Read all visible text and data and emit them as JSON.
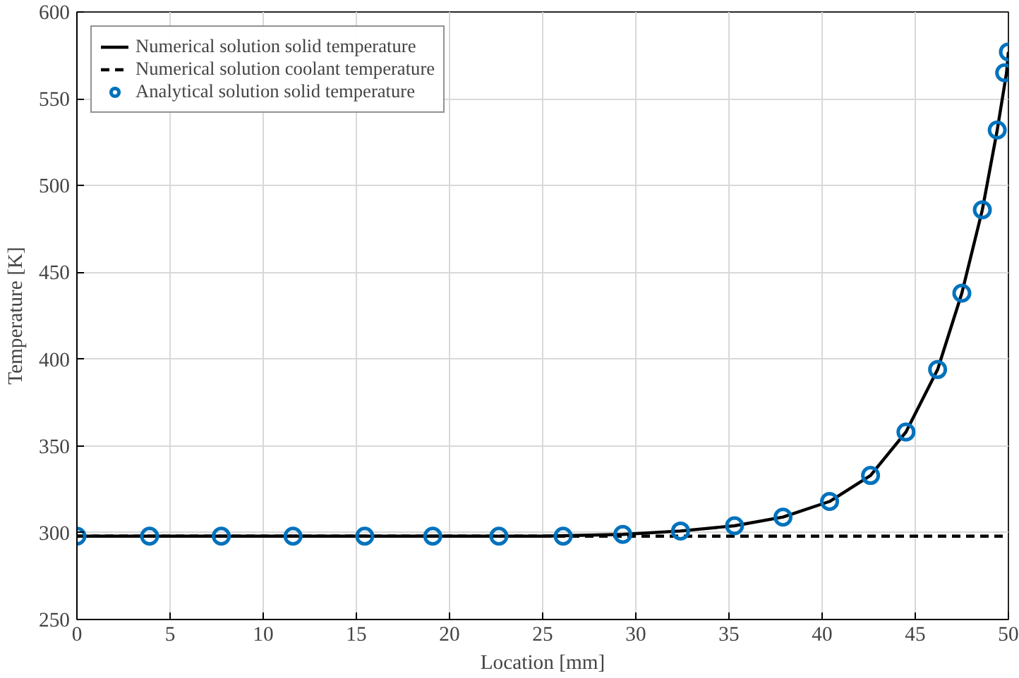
{
  "chart_data": {
    "type": "line",
    "xlabel": "Location [mm]",
    "ylabel": "Temperature [K]",
    "xlim": [
      0,
      50
    ],
    "ylim": [
      250,
      600
    ],
    "xticks": [
      0,
      5,
      10,
      15,
      20,
      25,
      30,
      35,
      40,
      45,
      50
    ],
    "yticks": [
      250,
      300,
      350,
      400,
      450,
      500,
      550,
      600
    ],
    "grid": true,
    "legend": "top left",
    "series": [
      {
        "name": "Numerical solution solid temperature",
        "color": "#000000",
        "line_style": "solid",
        "marker": "none",
        "x": [
          0,
          5,
          10,
          15,
          20,
          25,
          29.3,
          32.4,
          35.3,
          37.9,
          40.4,
          42.6,
          44.5,
          46.2,
          47.5,
          48.6,
          49.4,
          49.9,
          50
        ],
        "values": [
          298,
          298,
          298,
          298,
          298,
          298,
          299,
          301,
          304,
          309,
          318,
          333,
          358,
          394,
          438,
          486,
          532,
          565,
          577
        ]
      },
      {
        "name": "Numerical solution coolant temperature",
        "color": "#000000",
        "line_style": "dashed",
        "marker": "none",
        "x": [
          0,
          50
        ],
        "values": [
          298,
          298
        ]
      },
      {
        "name": "Analytical solution solid temperature",
        "type": "scatter",
        "color": "#0072bd",
        "marker": "circle",
        "x": [
          0,
          3.9,
          7.75,
          11.6,
          15.45,
          19.1,
          22.65,
          26.1,
          29.3,
          32.4,
          35.3,
          37.9,
          40.4,
          42.6,
          44.5,
          46.2,
          47.5,
          48.6,
          49.4,
          49.8,
          50
        ],
        "values": [
          298,
          298,
          298,
          298,
          298,
          298,
          298,
          298,
          299,
          301,
          304,
          309,
          318,
          333,
          358,
          394,
          438,
          486,
          532,
          565,
          577
        ]
      }
    ]
  }
}
